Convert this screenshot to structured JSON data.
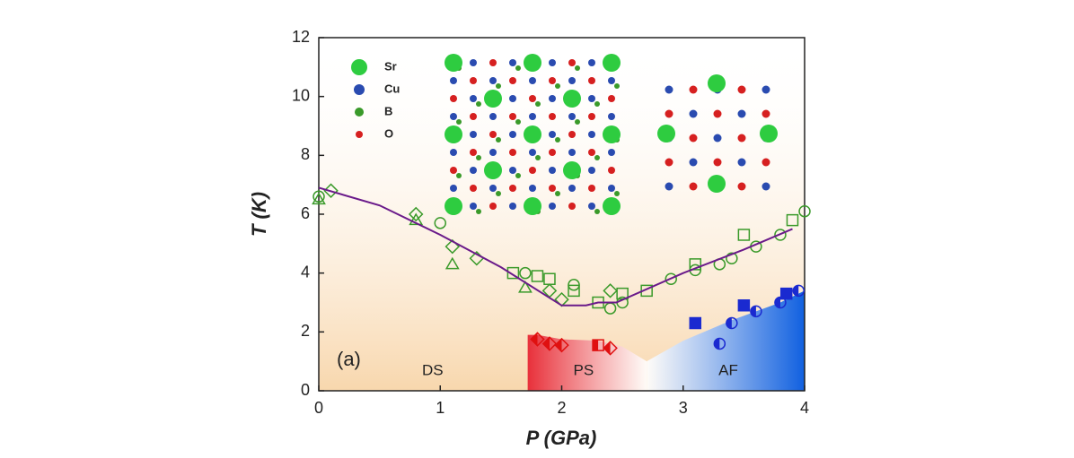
{
  "chart_data": {
    "type": "scatter",
    "xlabel": "P (GPa)",
    "ylabel": "T (K)",
    "xlim": [
      0,
      4
    ],
    "ylim": [
      0,
      12
    ],
    "xticks": [
      0,
      1,
      2,
      3,
      4
    ],
    "yticks": [
      0,
      2,
      4,
      6,
      8,
      10,
      12
    ],
    "panel_label": "(a)",
    "atom_legend": [
      {
        "label": "Sr",
        "color": "#2ecc40"
      },
      {
        "label": "Cu",
        "color": "#2a4bb0"
      },
      {
        "label": "B",
        "color": "#3a9a2a"
      },
      {
        "label": "O",
        "color": "#d62020"
      }
    ],
    "regions": [
      {
        "label": "PS",
        "color": "#e8303a",
        "x": [
          1.72,
          1.72,
          1.8,
          2.0,
          2.3,
          2.5,
          2.7,
          2.7
        ],
        "y": [
          0,
          1.9,
          1.9,
          1.75,
          1.7,
          1.5,
          1.0,
          0
        ]
      },
      {
        "label": "AF",
        "color": "#1060e0",
        "x": [
          2.7,
          2.7,
          3.0,
          3.4,
          3.8,
          4.0,
          4.0
        ],
        "y": [
          0,
          1.0,
          1.7,
          2.4,
          3.0,
          3.4,
          0
        ]
      }
    ],
    "ds_label": "DS",
    "series": [
      {
        "marker": "circle",
        "fill": "none",
        "color": "#3a9a2a",
        "x": [
          0,
          1,
          1.7,
          2.1,
          2.4,
          2.5,
          2.9,
          3.1,
          3.3,
          3.4,
          3.6,
          3.8,
          4.0
        ],
        "values": [
          6.6,
          5.7,
          4.0,
          3.6,
          2.8,
          3.0,
          3.8,
          4.1,
          4.3,
          4.5,
          4.9,
          5.3,
          6.1
        ]
      },
      {
        "marker": "square",
        "fill": "none",
        "color": "#3a9a2a",
        "x": [
          1.6,
          1.8,
          1.9,
          2.1,
          2.3,
          2.5,
          2.7,
          3.1,
          3.5,
          3.9
        ],
        "values": [
          4.0,
          3.9,
          3.8,
          3.4,
          3.0,
          3.3,
          3.4,
          4.3,
          5.3,
          5.8
        ]
      },
      {
        "marker": "diamond",
        "fill": "none",
        "color": "#3a9a2a",
        "x": [
          0.1,
          0.8,
          1.1,
          1.3,
          1.9,
          2.0,
          2.4
        ],
        "values": [
          6.8,
          6.0,
          4.9,
          4.5,
          3.4,
          3.1,
          3.4
        ]
      },
      {
        "marker": "triangle",
        "fill": "none",
        "color": "#3a9a2a",
        "x": [
          0,
          0.8,
          1.1,
          1.7
        ],
        "values": [
          6.5,
          5.8,
          4.3,
          3.5
        ]
      },
      {
        "marker": "line",
        "color": "#6a1a8a",
        "x": [
          0,
          0.5,
          1.0,
          1.5,
          2.0,
          2.2,
          2.3,
          2.45,
          3.0,
          3.5,
          3.9
        ],
        "values": [
          6.9,
          6.3,
          5.3,
          4.2,
          2.9,
          2.9,
          3.0,
          3.0,
          4.0,
          4.8,
          5.5
        ]
      },
      {
        "marker": "square",
        "fill": "solid",
        "color": "#1a2ad0",
        "x": [
          3.1,
          3.5,
          3.85
        ],
        "values": [
          2.3,
          2.9,
          3.3
        ]
      },
      {
        "marker": "circle",
        "fill": "half",
        "color": "#1a2ad0",
        "x": [
          3.3,
          3.4,
          3.6,
          3.8,
          3.95
        ],
        "values": [
          1.6,
          2.3,
          2.7,
          3.0,
          3.4
        ]
      },
      {
        "marker": "diamond",
        "fill": "half",
        "color": "#e01010",
        "x": [
          1.8,
          1.9,
          2.0,
          2.4
        ],
        "values": [
          1.75,
          1.6,
          1.55,
          1.45
        ]
      },
      {
        "marker": "square",
        "fill": "half",
        "color": "#e01010",
        "x": [
          2.3
        ],
        "values": [
          1.55
        ]
      }
    ]
  }
}
